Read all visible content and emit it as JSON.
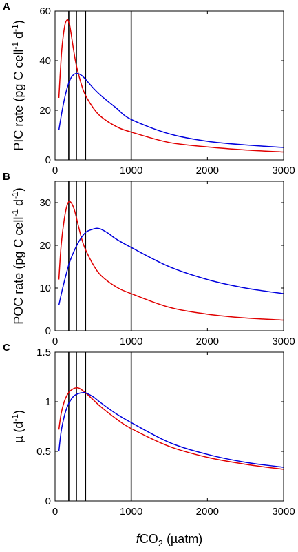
{
  "figure": {
    "x_label_main": "CO",
    "x_label_italic": "f",
    "x_label_sub": "2",
    "x_label_units": " (µatm)"
  },
  "chart_data": [
    {
      "panel_label": "A",
      "type": "line",
      "ylabel": {
        "pre": "PIC rate (pg C cell",
        "sup1": "-1",
        "mid": " d",
        "sup2": "-1",
        "post": ")"
      },
      "xlim": [
        0,
        3000
      ],
      "ylim": [
        0,
        60
      ],
      "xticks": [
        0,
        1000,
        2000,
        3000
      ],
      "yticks": [
        0,
        20,
        40,
        60
      ],
      "vlines": [
        180,
        280,
        400,
        1000
      ],
      "series": [
        {
          "color": "#e00000",
          "x": [
            50,
            80,
            100,
            130,
            160,
            180,
            200,
            240,
            280,
            350,
            400,
            500,
            600,
            800,
            1000,
            1500,
            2000,
            2500,
            3000
          ],
          "y": [
            25,
            41,
            48,
            54.5,
            56.5,
            55.5,
            53,
            45,
            38,
            30,
            26,
            21,
            17.5,
            13.5,
            11.2,
            7,
            5.2,
            4,
            3.2
          ]
        },
        {
          "color": "#0000dd",
          "x": [
            50,
            100,
            150,
            200,
            250,
            300,
            350,
            400,
            500,
            600,
            800,
            1000,
            1500,
            2000,
            2500,
            3000
          ],
          "y": [
            12,
            21,
            28,
            32.5,
            34.5,
            34.8,
            34,
            32.5,
            29,
            26,
            21,
            16.3,
            10.5,
            7.5,
            6,
            5
          ]
        }
      ]
    },
    {
      "panel_label": "B",
      "type": "line",
      "ylabel": {
        "pre": "POC rate (pg C cell",
        "sup1": "-1",
        "mid": " d",
        "sup2": "-1",
        "post": ")"
      },
      "xlim": [
        0,
        3000
      ],
      "ylim": [
        0,
        35
      ],
      "xticks": [
        0,
        1000,
        2000,
        3000
      ],
      "yticks": [
        0,
        10,
        20,
        30
      ],
      "vlines": [
        180,
        280,
        400,
        1000
      ],
      "series": [
        {
          "color": "#e00000",
          "x": [
            50,
            80,
            120,
            160,
            200,
            250,
            300,
            350,
            400,
            500,
            600,
            800,
            1000,
            1500,
            2000,
            2500,
            3000
          ],
          "y": [
            12,
            20,
            26,
            29.5,
            30.2,
            28.5,
            25,
            21.5,
            19,
            15.5,
            13,
            10.3,
            8.7,
            5.5,
            3.9,
            3,
            2.5
          ]
        },
        {
          "color": "#0000dd",
          "x": [
            50,
            100,
            150,
            200,
            300,
            400,
            500,
            550,
            600,
            700,
            800,
            1000,
            1500,
            2000,
            2500,
            3000
          ],
          "y": [
            6,
            10,
            13.5,
            16.5,
            20.5,
            23,
            23.8,
            24,
            23.8,
            22.8,
            21.5,
            19.5,
            15,
            12,
            10,
            8.7
          ]
        }
      ]
    },
    {
      "panel_label": "C",
      "type": "line",
      "ylabel": {
        "pre": "µ (d",
        "sup1": "-1",
        "mid": "",
        "sup2": "",
        "post": ")"
      },
      "xlim": [
        0,
        3000
      ],
      "ylim": [
        0,
        1.5
      ],
      "xticks": [
        0,
        1000,
        2000,
        3000
      ],
      "yticks": [
        0,
        0.5,
        1,
        1.5
      ],
      "vlines": [
        180,
        280,
        400,
        1000
      ],
      "series": [
        {
          "color": "#e00000",
          "x": [
            50,
            80,
            120,
            160,
            200,
            250,
            280,
            320,
            400,
            500,
            600,
            800,
            1000,
            1500,
            2000,
            2500,
            3000
          ],
          "y": [
            0.72,
            0.88,
            1.0,
            1.07,
            1.11,
            1.135,
            1.14,
            1.135,
            1.09,
            1.02,
            0.95,
            0.83,
            0.73,
            0.55,
            0.44,
            0.37,
            0.32
          ]
        },
        {
          "color": "#0000dd",
          "x": [
            50,
            80,
            120,
            160,
            200,
            250,
            300,
            350,
            400,
            500,
            600,
            800,
            1000,
            1500,
            2000,
            2500,
            3000
          ],
          "y": [
            0.5,
            0.7,
            0.85,
            0.95,
            1.01,
            1.06,
            1.08,
            1.09,
            1.09,
            1.05,
            0.99,
            0.88,
            0.79,
            0.59,
            0.47,
            0.39,
            0.34
          ]
        }
      ]
    }
  ]
}
